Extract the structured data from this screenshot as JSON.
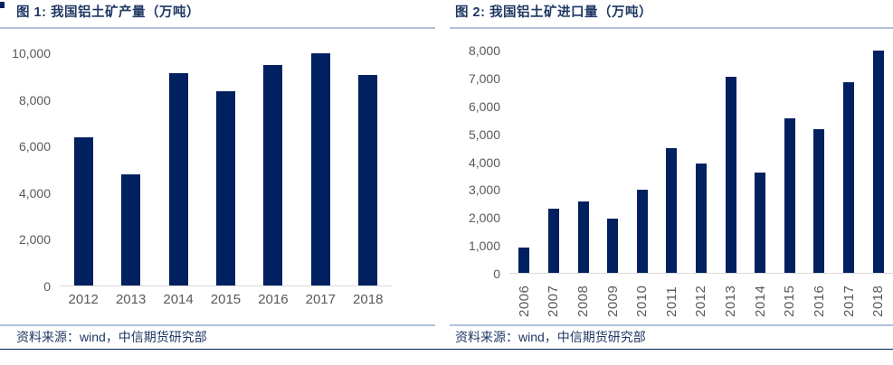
{
  "page": {
    "background": "#ffffff",
    "accent_navy": "#002060",
    "title_navy": "#1f3864",
    "axis_label_gray": "#595959",
    "axis_line_gray": "#d9d9d9",
    "divider_blue": "#b0c1d9"
  },
  "chart_data": [
    {
      "type": "bar",
      "title": "图 1: 我国铝土矿产量（万吨）",
      "source": "资料来源：wind，中信期货研究部",
      "categories": [
        "2012",
        "2013",
        "2014",
        "2015",
        "2016",
        "2017",
        "2018"
      ],
      "values": [
        6400,
        4800,
        9150,
        8350,
        9500,
        10000,
        9050
      ],
      "xlabel": "",
      "ylabel": "",
      "ylim": [
        0,
        10000
      ],
      "ytick": 2000,
      "bar_color": "#002060",
      "grid": "off",
      "legend": "none",
      "rotate_x_labels": false
    },
    {
      "type": "bar",
      "title": "图 2: 我国铝土矿进口量（万吨）",
      "source": "资料来源：wind，中信期货研究部",
      "categories": [
        "2006",
        "2007",
        "2008",
        "2009",
        "2010",
        "2011",
        "2012",
        "2013",
        "2014",
        "2015",
        "2016",
        "2017",
        "2018"
      ],
      "values": [
        900,
        2300,
        2560,
        1950,
        3000,
        4500,
        3950,
        7070,
        3620,
        5560,
        5180,
        6860,
        8000
      ],
      "xlabel": "",
      "ylabel": "",
      "ylim": [
        0,
        8000
      ],
      "ytick": 1000,
      "bar_color": "#002060",
      "grid": "off",
      "legend": "none",
      "rotate_x_labels": true
    }
  ]
}
